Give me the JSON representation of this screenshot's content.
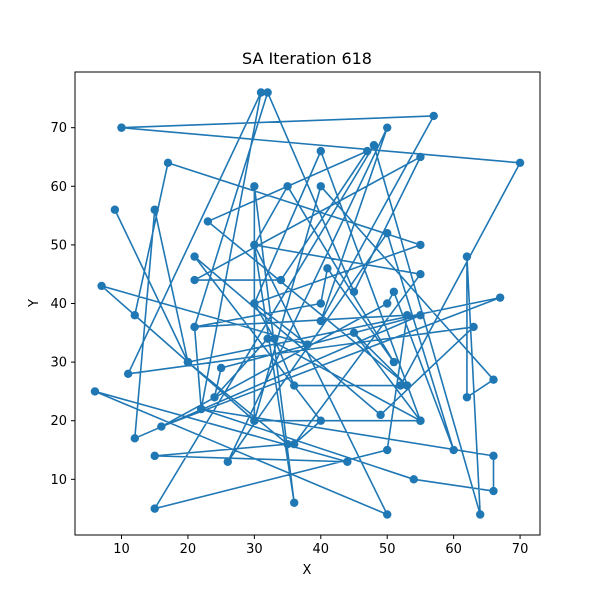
{
  "chart_data": {
    "type": "line",
    "title": "SA Iteration 618",
    "xlabel": "X",
    "ylabel": "Y",
    "xlim": [
      3,
      73
    ],
    "ylim": [
      0.5,
      79.5
    ],
    "xticks": [
      10,
      20,
      30,
      40,
      50,
      60,
      70
    ],
    "yticks": [
      10,
      20,
      30,
      40,
      50,
      60,
      70
    ],
    "grid": false,
    "color": "#1f77b4",
    "series": [
      {
        "points": [
          [
            10,
            70
          ],
          [
            57,
            72
          ],
          [
            40,
            37
          ],
          [
            50,
            70
          ],
          [
            26,
            13
          ],
          [
            50,
            52
          ],
          [
            60,
            15
          ],
          [
            51,
            42
          ],
          [
            50,
            40
          ],
          [
            16,
            19
          ],
          [
            67,
            41
          ],
          [
            20,
            30
          ],
          [
            9,
            56
          ],
          [
            20,
            30
          ],
          [
            15,
            56
          ],
          [
            12,
            17
          ],
          [
            55,
            38
          ],
          [
            25,
            29
          ],
          [
            24,
            24
          ],
          [
            32,
            34
          ],
          [
            55,
            20
          ],
          [
            45,
            35
          ],
          [
            53,
            26
          ],
          [
            23,
            54
          ],
          [
            47,
            66
          ],
          [
            34,
            44
          ],
          [
            21,
            44
          ],
          [
            55,
            65
          ],
          [
            45,
            42
          ],
          [
            32,
            76
          ],
          [
            21,
            36
          ],
          [
            53,
            38
          ],
          [
            50,
            15
          ],
          [
            15,
            5
          ],
          [
            48,
            67
          ],
          [
            64,
            4
          ],
          [
            62,
            48
          ],
          [
            62,
            24
          ],
          [
            66,
            27
          ],
          [
            40,
            60
          ],
          [
            30,
            20
          ],
          [
            30,
            60
          ],
          [
            36,
            6
          ],
          [
            30,
            50
          ],
          [
            35,
            60
          ],
          [
            51,
            30
          ],
          [
            41,
            46
          ],
          [
            40,
            40
          ],
          [
            21,
            36
          ],
          [
            22,
            22
          ],
          [
            54,
            10
          ],
          [
            66,
            8
          ],
          [
            66,
            14
          ],
          [
            22,
            22
          ],
          [
            31,
            76
          ],
          [
            11,
            28
          ],
          [
            63,
            36
          ],
          [
            49,
            21
          ],
          [
            21,
            48
          ],
          [
            40,
            20
          ],
          [
            36,
            16
          ],
          [
            55,
            45
          ],
          [
            30,
            50
          ],
          [
            50,
            4
          ],
          [
            6,
            25
          ],
          [
            44,
            13
          ],
          [
            15,
            14
          ],
          [
            35,
            16
          ],
          [
            20,
            30
          ],
          [
            7,
            43
          ],
          [
            38,
            33
          ],
          [
            30,
            40
          ],
          [
            40,
            66
          ],
          [
            55,
            20
          ],
          [
            30,
            20
          ],
          [
            12,
            38
          ],
          [
            17,
            64
          ],
          [
            55,
            50
          ],
          [
            30,
            40
          ],
          [
            33,
            34
          ],
          [
            36,
            26
          ],
          [
            52,
            26
          ],
          [
            70,
            64
          ],
          [
            10,
            70
          ]
        ]
      }
    ]
  }
}
